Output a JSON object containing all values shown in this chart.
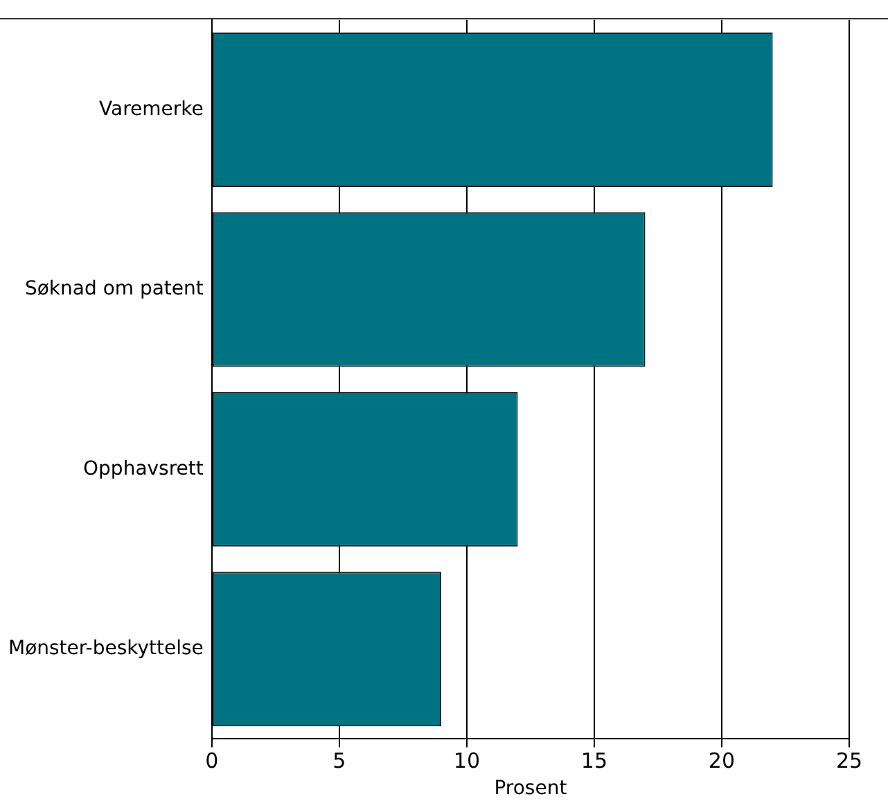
{
  "chart_data": {
    "type": "bar",
    "orientation": "horizontal",
    "xlabel": "Prosent",
    "categories": [
      "Varemerke",
      "Søknad om patent",
      "Opphavsrett",
      "Mønster-beskyttelse"
    ],
    "values": [
      22,
      17,
      12,
      9
    ],
    "color": "#007382",
    "xlim": [
      0,
      25
    ],
    "xticks": [
      0,
      5,
      10,
      15,
      20,
      25
    ],
    "grid": "x",
    "legend": false
  }
}
